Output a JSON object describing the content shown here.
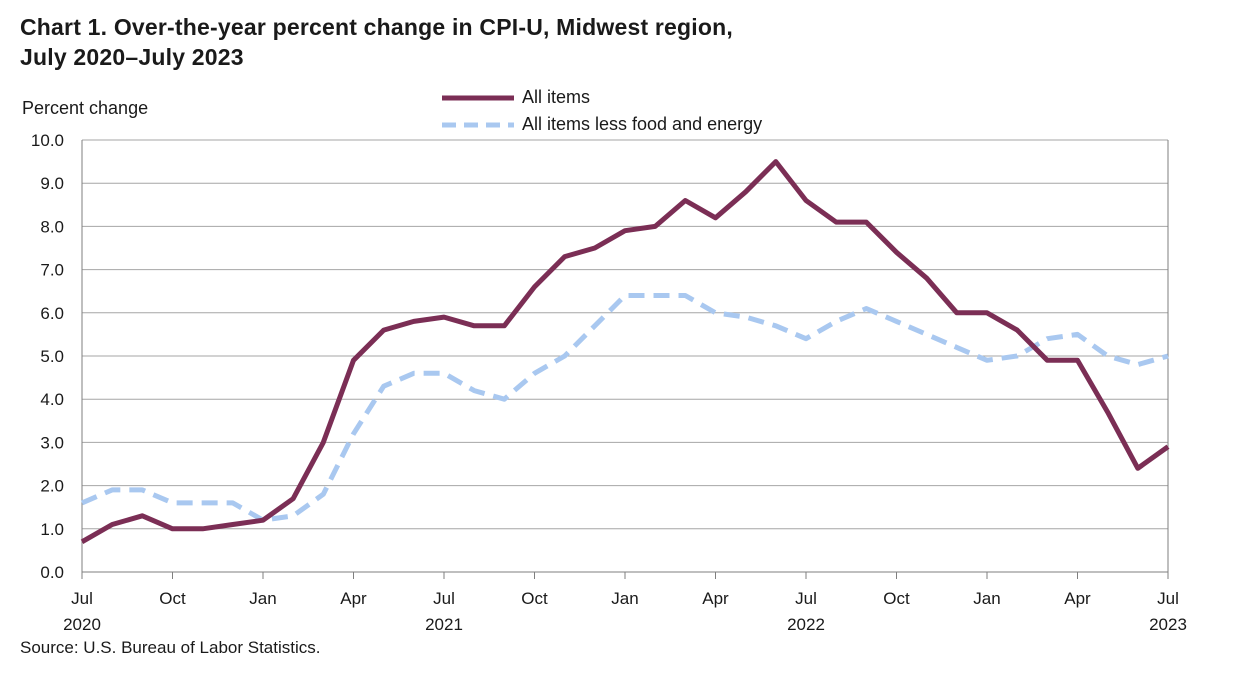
{
  "title": {
    "line1": "Chart 1. Over-the-year percent change in CPI-U, Midwest region,",
    "line2": "July 2020–July  2023"
  },
  "source": "Source: U.S. Bureau of Labor Statistics.",
  "colors": {
    "all_items": "#7b2e55",
    "core": "#a9c8f0",
    "grid": "#a6a6a6",
    "axis": "#7f7f7f"
  },
  "chart_data": {
    "type": "line",
    "ylabel": "Percent change",
    "ylim": [
      0,
      10
    ],
    "yticks": [
      "0.0",
      "1.0",
      "2.0",
      "3.0",
      "4.0",
      "5.0",
      "6.0",
      "7.0",
      "8.0",
      "9.0",
      "10.0"
    ],
    "grid": true,
    "legend_position": "top-center",
    "x": [
      "Jul 2020",
      "Aug 2020",
      "Sep 2020",
      "Oct 2020",
      "Nov 2020",
      "Dec 2020",
      "Jan 2021",
      "Feb 2021",
      "Mar 2021",
      "Apr 2021",
      "May 2021",
      "Jun 2021",
      "Jul 2021",
      "Aug 2021",
      "Sep 2021",
      "Oct 2021",
      "Nov 2021",
      "Dec 2021",
      "Jan 2022",
      "Feb 2022",
      "Mar 2022",
      "Apr 2022",
      "May 2022",
      "Jun 2022",
      "Jul 2022",
      "Aug 2022",
      "Sep 2022",
      "Oct 2022",
      "Nov 2022",
      "Dec 2022",
      "Jan 2023",
      "Feb 2023",
      "Mar 2023",
      "Apr 2023",
      "May 2023",
      "Jun 2023",
      "Jul 2023"
    ],
    "x_tick_labels": [
      {
        "index": 0,
        "month": "Jul",
        "year": "2020"
      },
      {
        "index": 3,
        "month": "Oct",
        "year": ""
      },
      {
        "index": 6,
        "month": "Jan",
        "year": ""
      },
      {
        "index": 9,
        "month": "Apr",
        "year": ""
      },
      {
        "index": 12,
        "month": "Jul",
        "year": "2021"
      },
      {
        "index": 15,
        "month": "Oct",
        "year": ""
      },
      {
        "index": 18,
        "month": "Jan",
        "year": ""
      },
      {
        "index": 21,
        "month": "Apr",
        "year": ""
      },
      {
        "index": 24,
        "month": "Jul",
        "year": "2022"
      },
      {
        "index": 27,
        "month": "Oct",
        "year": ""
      },
      {
        "index": 30,
        "month": "Jan",
        "year": ""
      },
      {
        "index": 33,
        "month": "Apr",
        "year": ""
      },
      {
        "index": 36,
        "month": "Jul",
        "year": "2023"
      }
    ],
    "series": [
      {
        "name": "All items",
        "style": "solid",
        "values": [
          0.7,
          1.1,
          1.3,
          1.0,
          1.0,
          1.1,
          1.2,
          1.7,
          3.0,
          4.9,
          5.6,
          5.8,
          5.9,
          5.7,
          5.7,
          6.6,
          7.3,
          7.5,
          7.9,
          8.0,
          8.6,
          8.2,
          8.8,
          9.5,
          8.6,
          8.1,
          8.1,
          7.4,
          6.8,
          6.0,
          6.0,
          5.6,
          4.9,
          4.9,
          3.7,
          2.4,
          2.9
        ]
      },
      {
        "name": "All items less food and energy",
        "style": "dashed",
        "values": [
          1.6,
          1.9,
          1.9,
          1.6,
          1.6,
          1.6,
          1.2,
          1.3,
          1.8,
          3.2,
          4.3,
          4.6,
          4.6,
          4.2,
          4.0,
          4.6,
          5.0,
          5.7,
          6.4,
          6.4,
          6.4,
          6.0,
          5.9,
          5.7,
          5.4,
          5.8,
          6.1,
          5.8,
          5.5,
          5.2,
          4.9,
          5.0,
          5.4,
          5.5,
          5.0,
          4.8,
          5.0
        ]
      }
    ]
  }
}
